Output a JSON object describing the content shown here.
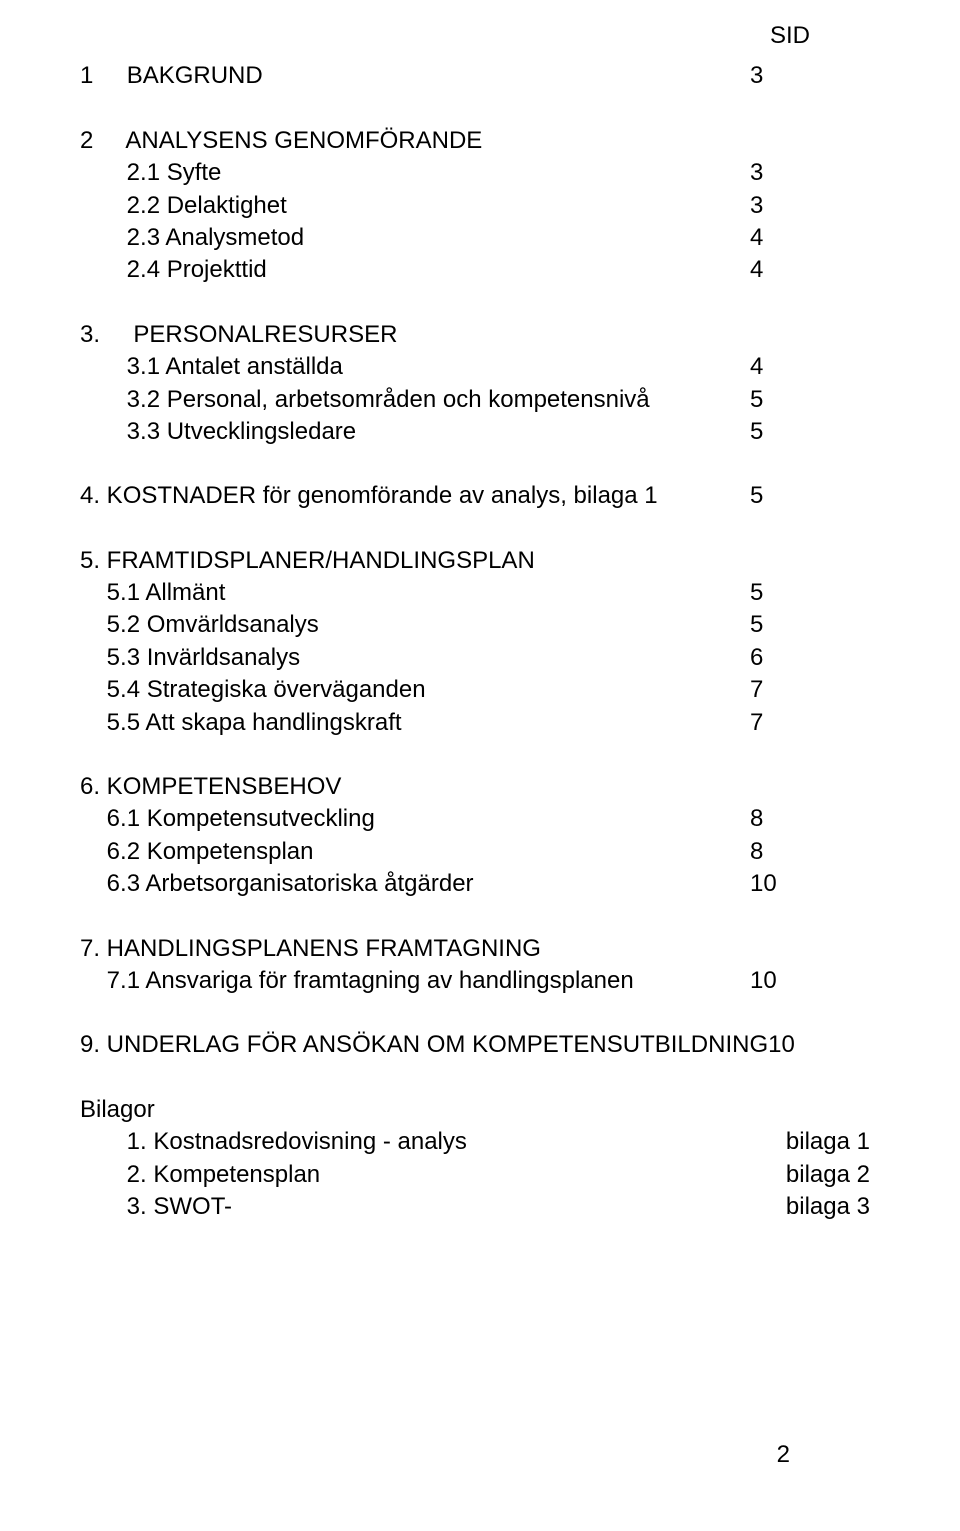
{
  "header": {
    "sid": "SID"
  },
  "toc": [
    {
      "label": "1     BAKGRUND",
      "page": "3"
    },
    {
      "spacer": true
    },
    {
      "label": "2     ANALYSENS GENOMFÖRANDE",
      "page": ""
    },
    {
      "label": "       2.1 Syfte",
      "page": "3"
    },
    {
      "label": "       2.2 Delaktighet",
      "page": "3"
    },
    {
      "label": "       2.3 Analysmetod",
      "page": "4"
    },
    {
      "label": "       2.4 Projekttid",
      "page": "4"
    },
    {
      "spacer": true
    },
    {
      "label": "3.     PERSONALRESURSER",
      "page": ""
    },
    {
      "label": "       3.1 Antalet anställda",
      "page": "4"
    },
    {
      "label": "       3.2 Personal, arbetsområden och kompetensnivå",
      "page": "5"
    },
    {
      "label": "       3.3 Utvecklingsledare",
      "page": "5"
    },
    {
      "spacer": true
    },
    {
      "label": "4. KOSTNADER för genomförande av analys, bilaga 1",
      "page": "5"
    },
    {
      "spacer": true
    },
    {
      "label": "5. FRAMTIDSPLANER/HANDLINGSPLAN",
      "page": ""
    },
    {
      "label": "    5.1 Allmänt",
      "page": "5"
    },
    {
      "label": "    5.2 Omvärldsanalys",
      "page": "5"
    },
    {
      "label": "    5.3 Invärldsanalys",
      "page": "6"
    },
    {
      "label": "    5.4 Strategiska överväganden",
      "page": "7"
    },
    {
      "label": "    5.5 Att skapa handlingskraft",
      "page": "7"
    },
    {
      "spacer": true
    },
    {
      "label": "6. KOMPETENSBEHOV",
      "page": ""
    },
    {
      "label": "    6.1 Kompetensutveckling",
      "page": "8"
    },
    {
      "label": "    6.2 Kompetensplan",
      "page": "8"
    },
    {
      "label": "    6.3 Arbetsorganisatoriska åtgärder",
      "page": "10"
    },
    {
      "spacer": true
    },
    {
      "label": "7. HANDLINGSPLANENS FRAMTAGNING",
      "page": ""
    },
    {
      "label": "    7.1 Ansvariga för framtagning av handlingsplanen",
      "page": "10"
    },
    {
      "spacer": true
    },
    {
      "label": "9. UNDERLAG FÖR ANSÖKAN OM KOMPETENSUTBILDNING",
      "page": "10"
    }
  ],
  "bilagor": {
    "heading": "Bilagor",
    "items": [
      {
        "label": "       1. Kostnadsredovisning - analys",
        "ref": "bilaga 1"
      },
      {
        "label": "       2. Kompetensplan",
        "ref": "bilaga 2"
      },
      {
        "label": "       3. SWOT-",
        "ref": "bilaga 3"
      }
    ]
  },
  "page_number": "2"
}
